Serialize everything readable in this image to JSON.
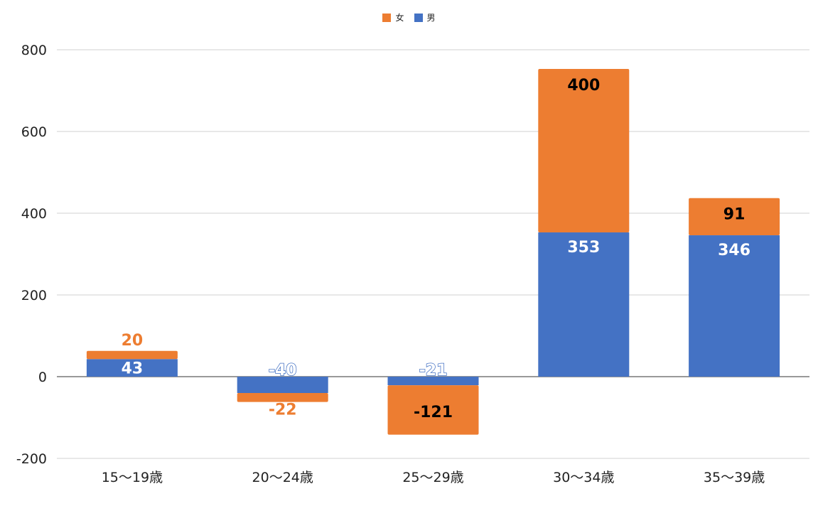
{
  "chart_data": {
    "type": "bar",
    "stacked": true,
    "categories": [
      "15〜19歳",
      "20〜24歳",
      "25〜29歳",
      "30〜34歳",
      "35〜39歳"
    ],
    "series": [
      {
        "name": "男",
        "color": "#4472C4",
        "values": [
          43,
          -40,
          -21,
          353,
          346
        ]
      },
      {
        "name": "女",
        "color": "#ED7D31",
        "values": [
          20,
          -22,
          -121,
          400,
          91
        ]
      }
    ],
    "legend_order": [
      "女",
      "男"
    ],
    "legend_position": "top-center",
    "ylim": [
      -200,
      800
    ],
    "yticks": [
      -200,
      0,
      200,
      400,
      600,
      800
    ],
    "grid": true,
    "data_label_colors": {
      "男": [
        "#ffffff",
        "#ffffff",
        "#ffffff",
        "#ffffff",
        "#ffffff"
      ],
      "女": [
        "#ED7D31",
        "#ED7D31",
        "#000000",
        "#000000",
        "#000000"
      ]
    }
  }
}
